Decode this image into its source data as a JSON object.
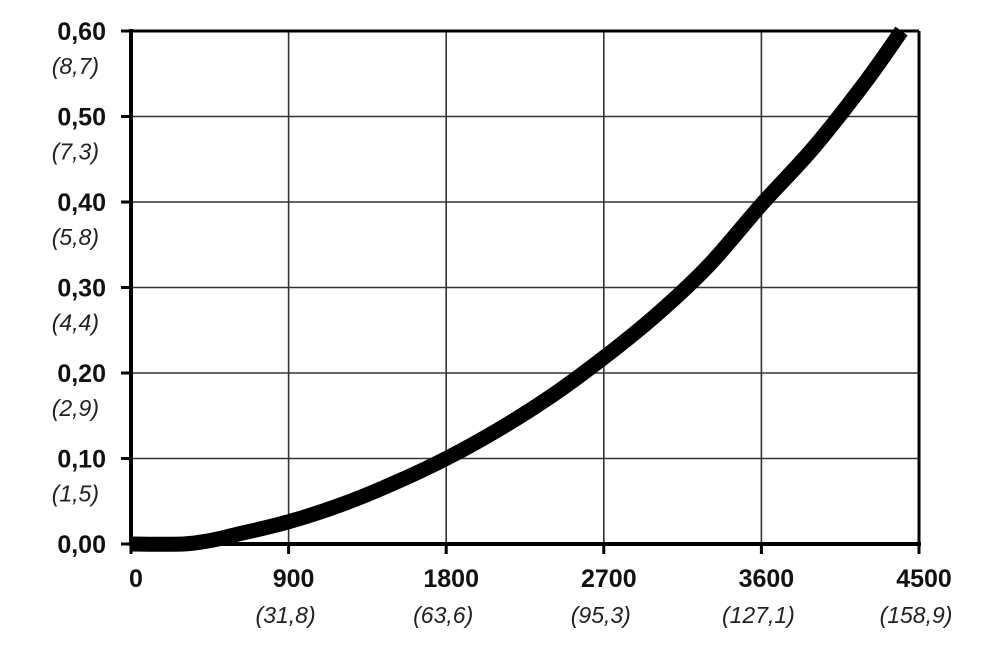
{
  "chart_data": {
    "type": "line",
    "title": "",
    "xlabel": "",
    "ylabel": "",
    "xlim": [
      0,
      4500
    ],
    "ylim": [
      0,
      0.6
    ],
    "grid": true,
    "legend": "none",
    "x_ticks": [
      {
        "value": 0,
        "label": "0",
        "sublabel": ""
      },
      {
        "value": 900,
        "label": "900",
        "sublabel": "(31,8)"
      },
      {
        "value": 1800,
        "label": "1800",
        "sublabel": "(63,6)"
      },
      {
        "value": 2700,
        "label": "2700",
        "sublabel": "(95,3)"
      },
      {
        "value": 3600,
        "label": "3600",
        "sublabel": "(127,1)"
      },
      {
        "value": 4500,
        "label": "4500",
        "sublabel": "(158,9)"
      }
    ],
    "y_ticks": [
      {
        "value": 0.0,
        "label": "0,00",
        "sublabel": ""
      },
      {
        "value": 0.1,
        "label": "0,10",
        "sublabel": "(1,5)"
      },
      {
        "value": 0.2,
        "label": "0,20",
        "sublabel": "(2,9)"
      },
      {
        "value": 0.3,
        "label": "0,30",
        "sublabel": "(4,4)"
      },
      {
        "value": 0.4,
        "label": "0,40",
        "sublabel": "(5,8)"
      },
      {
        "value": 0.5,
        "label": "0,50",
        "sublabel": "(7,3)"
      },
      {
        "value": 0.6,
        "label": "0,60",
        "sublabel": "(8,7)"
      }
    ],
    "series": [
      {
        "color": "#000000",
        "x": [
          0,
          300,
          450,
          600,
          900,
          1200,
          1500,
          1800,
          2100,
          2400,
          2700,
          3000,
          3300,
          3600,
          3900,
          4200,
          4400
        ],
        "y": [
          0.0,
          0.0,
          0.004,
          0.011,
          0.026,
          0.046,
          0.071,
          0.1,
          0.134,
          0.173,
          0.218,
          0.268,
          0.326,
          0.397,
          0.464,
          0.542,
          0.6
        ]
      }
    ]
  }
}
